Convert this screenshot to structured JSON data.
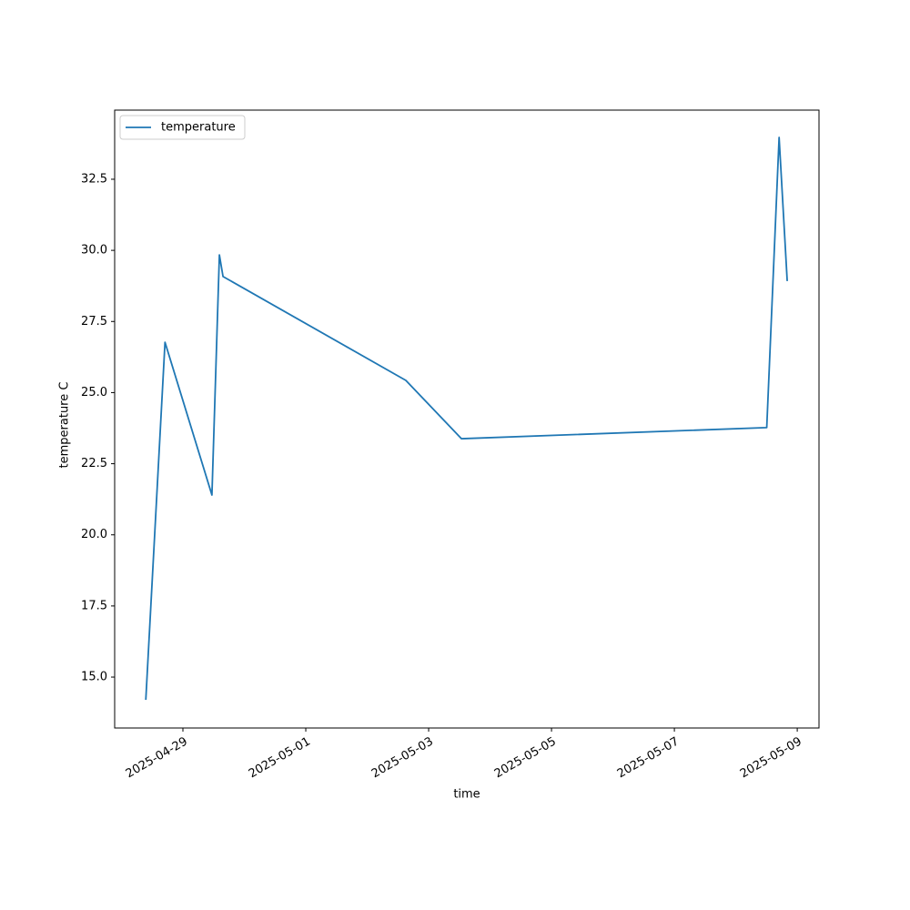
{
  "chart_data": {
    "type": "line",
    "xlabel": "time",
    "ylabel": "temperature C",
    "x": [
      "2025-04-28T09:30",
      "2025-04-28T17:00",
      "2025-04-29T11:20",
      "2025-04-29T14:15",
      "2025-04-29T15:40",
      "2025-05-02T15:05",
      "2025-05-03T12:50",
      "2025-05-08T12:05",
      "2025-05-08T16:55",
      "2025-05-08T20:05"
    ],
    "series": [
      {
        "name": "temperature",
        "color": "#1f77b4",
        "values": [
          14.2,
          26.77,
          21.4,
          29.84,
          29.08,
          25.43,
          23.38,
          23.77,
          33.97,
          28.92
        ]
      }
    ],
    "xlim": [
      "2025-04-27T21:20",
      "2025-05-09T08:30"
    ],
    "xticks": [
      "2025-04-29",
      "2025-05-01",
      "2025-05-03",
      "2025-05-05",
      "2025-05-07",
      "2025-05-09"
    ],
    "ylim": [
      13.21,
      34.93
    ],
    "yticks": [
      {
        "value": 15,
        "label": "15.0"
      },
      17.5,
      {
        "value": 20,
        "label": "20.0"
      },
      22.5,
      {
        "value": 25,
        "label": "25.0"
      },
      27.5,
      {
        "value": 30,
        "label": "30.0"
      },
      32.5
    ],
    "grid": false,
    "legend": "upper left"
  }
}
